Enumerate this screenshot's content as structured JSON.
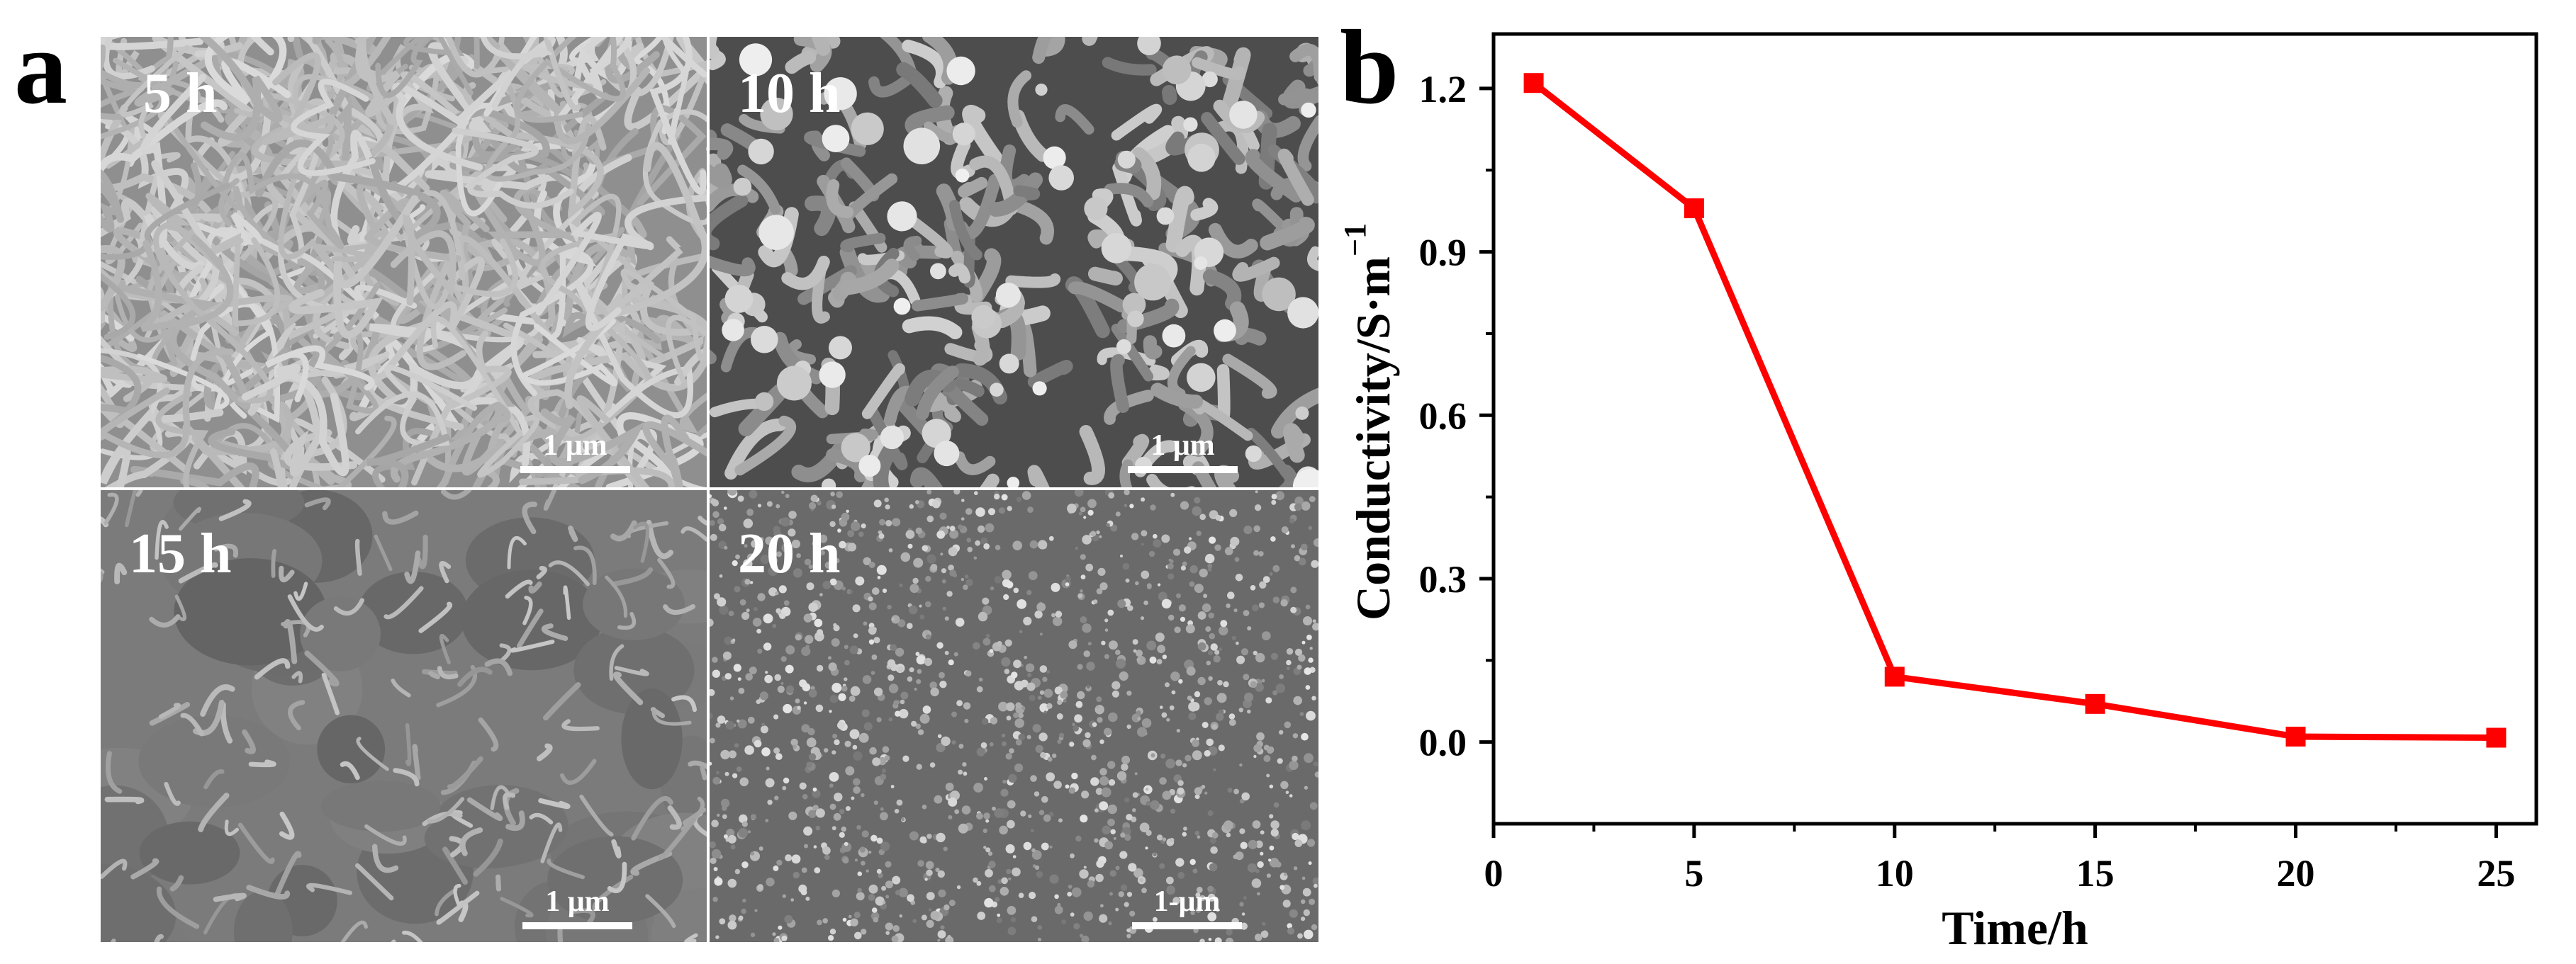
{
  "figure": {
    "panel_a_label": "a",
    "panel_b_label": "b"
  },
  "sem_panels": [
    {
      "time": "5 h",
      "scale": "1 μm",
      "bg": "#8f8f8f",
      "style": "fibers"
    },
    {
      "time": "10 h",
      "scale": "1 μm",
      "bg": "#4d4d4d",
      "style": "rods"
    },
    {
      "time": "15 h",
      "scale": "1 μm",
      "bg": "#7b7b7b",
      "style": "plates"
    },
    {
      "time": "20 h",
      "scale": "1-μm",
      "bg": "#6a6a6a",
      "style": "grains"
    }
  ],
  "chart_data": {
    "type": "line",
    "title": "",
    "xlabel": "Time/h",
    "ylabel": "Conductivity/S·m",
    "ylabel_superscript": "−1",
    "xlim": [
      0,
      26
    ],
    "ylim": [
      -0.15,
      1.3
    ],
    "xticks": [
      0,
      5,
      10,
      15,
      20,
      25
    ],
    "yticks": [
      0.0,
      0.3,
      0.6,
      0.9,
      1.2
    ],
    "xtick_labels": [
      "0",
      "5",
      "10",
      "15",
      "20",
      "25"
    ],
    "ytick_labels": [
      "0.0",
      "0.3",
      "0.6",
      "0.9",
      "1.2"
    ],
    "grid": false,
    "series": [
      {
        "color": "#ff0000",
        "marker": "square",
        "x": [
          1,
          5,
          10,
          15,
          20,
          25
        ],
        "y": [
          1.21,
          0.98,
          0.12,
          0.07,
          0.01,
          0.008
        ]
      }
    ]
  }
}
